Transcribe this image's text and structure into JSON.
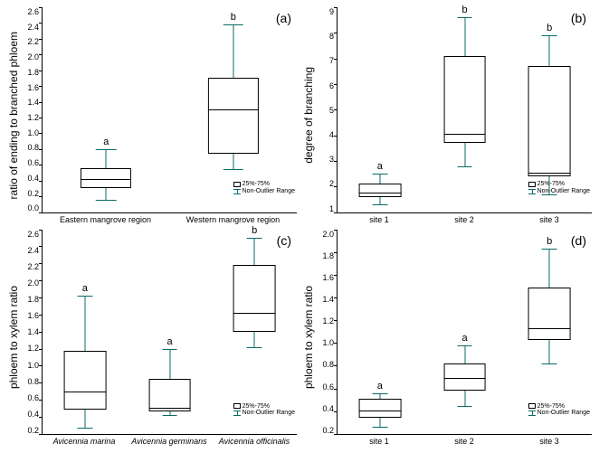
{
  "typography": {
    "font_family": "Arial, sans-serif",
    "axis_label_fontsize_pt": 10,
    "tick_fontsize_pt": 8,
    "panel_label_fontsize_pt": 12,
    "sig_letter_fontsize_pt": 10
  },
  "colors": {
    "background": "#ffffff",
    "axis": "#000000",
    "box_border": "#000000",
    "whisker": "#0a6b68",
    "text": "#000000"
  },
  "legend": {
    "box_label": "25%-75%",
    "whisker_label": "Non-Outlier Range"
  },
  "panels": {
    "a": {
      "label": "(a)",
      "type": "boxplot",
      "ylabel": "ratio of ending to branched phloem",
      "ylim": [
        0.0,
        2.6
      ],
      "ytick_step": 0.2,
      "box_width_rel": 0.4,
      "cap_width_rel": 0.16,
      "categories": [
        "Eastern mangrove region",
        "Western mangrove region"
      ],
      "category_style": "normal",
      "boxes": [
        {
          "min": 0.16,
          "q1": 0.3,
          "median": 0.42,
          "q3": 0.56,
          "max": 0.8,
          "letter": "a"
        },
        {
          "min": 0.55,
          "q1": 0.74,
          "median": 1.3,
          "q3": 1.7,
          "max": 2.38,
          "letter": "b"
        }
      ]
    },
    "b": {
      "label": "(b)",
      "type": "boxplot",
      "ylabel": "degree of branching",
      "ylim": [
        1.0,
        9.0
      ],
      "ytick_step": 1.0,
      "box_width_rel": 0.5,
      "cap_width_rel": 0.18,
      "categories": [
        "site 1",
        "site 2",
        "site 3"
      ],
      "category_style": "normal",
      "boxes": [
        {
          "min": 1.3,
          "q1": 1.6,
          "median": 1.75,
          "q3": 2.1,
          "max": 2.5,
          "letter": "a"
        },
        {
          "min": 2.8,
          "q1": 3.7,
          "median": 4.05,
          "q3": 7.1,
          "max": 8.6,
          "letter": "b"
        },
        {
          "min": 1.7,
          "q1": 2.4,
          "median": 2.55,
          "q3": 6.7,
          "max": 7.9,
          "letter": "b"
        }
      ]
    },
    "c": {
      "label": "(c)",
      "type": "boxplot",
      "ylabel": "phloem to xylem ratio",
      "ylim": [
        0.2,
        2.6
      ],
      "ytick_step": 0.2,
      "box_width_rel": 0.5,
      "cap_width_rel": 0.18,
      "categories": [
        "Avicennia marina",
        "Avicennia germinans",
        "Avicennia officinalis"
      ],
      "category_style": "italic",
      "boxes": [
        {
          "min": 0.27,
          "q1": 0.49,
          "median": 0.7,
          "q3": 1.18,
          "max": 1.82,
          "letter": "a"
        },
        {
          "min": 0.42,
          "q1": 0.47,
          "median": 0.51,
          "q3": 0.85,
          "max": 1.2,
          "letter": "a"
        },
        {
          "min": 1.22,
          "q1": 1.4,
          "median": 1.62,
          "q3": 2.18,
          "max": 2.5,
          "letter": "b"
        }
      ]
    },
    "d": {
      "label": "(d)",
      "type": "boxplot",
      "ylabel": "phloem to xylem ratio",
      "ylim": [
        0.2,
        2.0
      ],
      "ytick_step": 0.2,
      "box_width_rel": 0.5,
      "cap_width_rel": 0.18,
      "categories": [
        "site 1",
        "site 2",
        "site 3"
      ],
      "category_style": "normal",
      "boxes": [
        {
          "min": 0.26,
          "q1": 0.34,
          "median": 0.41,
          "q3": 0.51,
          "max": 0.56,
          "letter": "a"
        },
        {
          "min": 0.45,
          "q1": 0.58,
          "median": 0.69,
          "q3": 0.82,
          "max": 0.98,
          "letter": "a"
        },
        {
          "min": 0.82,
          "q1": 1.03,
          "median": 1.13,
          "q3": 1.49,
          "max": 1.83,
          "letter": "b"
        }
      ]
    }
  }
}
